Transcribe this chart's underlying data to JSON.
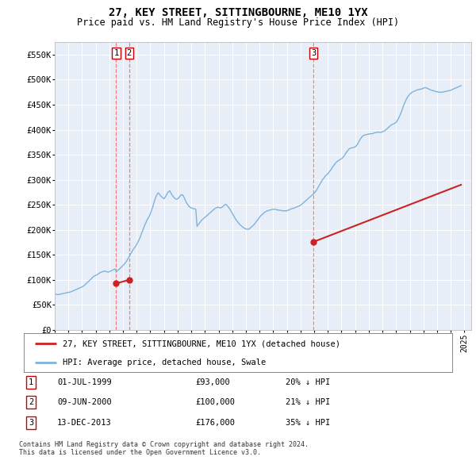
{
  "title": "27, KEY STREET, SITTINGBOURNE, ME10 1YX",
  "subtitle": "Price paid vs. HM Land Registry's House Price Index (HPI)",
  "title_fontsize": 10,
  "subtitle_fontsize": 8.5,
  "ylim": [
    0,
    575000
  ],
  "yticks": [
    0,
    50000,
    100000,
    150000,
    200000,
    250000,
    300000,
    350000,
    400000,
    450000,
    500000,
    550000
  ],
  "ytick_labels": [
    "£0",
    "£50K",
    "£100K",
    "£150K",
    "£200K",
    "£250K",
    "£300K",
    "£350K",
    "£400K",
    "£450K",
    "£500K",
    "£550K"
  ],
  "xlim_start": 1995.0,
  "xlim_end": 2025.5,
  "background_color": "#ffffff",
  "plot_bg_color": "#e8eef8",
  "grid_color": "#ffffff",
  "hpi_line_color": "#7fb3d9",
  "price_line_color": "#cc2222",
  "sale_marker_color": "#cc2222",
  "vline_color": "#ff6666",
  "sales": [
    {
      "date_num": 1999.5,
      "price": 93000,
      "label": "1",
      "date_str": "01-JUL-1999",
      "pct": "20%",
      "dir": "↓"
    },
    {
      "date_num": 2000.45,
      "price": 100000,
      "label": "2",
      "date_str": "09-JUN-2000",
      "pct": "21%",
      "dir": "↓"
    },
    {
      "date_num": 2013.95,
      "price": 176000,
      "label": "3",
      "date_str": "13-DEC-2013",
      "pct": "35%",
      "dir": "↓"
    }
  ],
  "legend_label_red": "27, KEY STREET, SITTINGBOURNE, ME10 1YX (detached house)",
  "legend_label_blue": "HPI: Average price, detached house, Swale",
  "footnote": "Contains HM Land Registry data © Crown copyright and database right 2024.\nThis data is licensed under the Open Government Licence v3.0.",
  "hpi_data": {
    "years": [
      1995.0,
      1995.08,
      1995.17,
      1995.25,
      1995.33,
      1995.42,
      1995.5,
      1995.58,
      1995.67,
      1995.75,
      1995.83,
      1995.92,
      1996.0,
      1996.08,
      1996.17,
      1996.25,
      1996.33,
      1996.42,
      1996.5,
      1996.58,
      1996.67,
      1996.75,
      1996.83,
      1996.92,
      1997.0,
      1997.08,
      1997.17,
      1997.25,
      1997.33,
      1997.42,
      1997.5,
      1997.58,
      1997.67,
      1997.75,
      1997.83,
      1997.92,
      1998.0,
      1998.08,
      1998.17,
      1998.25,
      1998.33,
      1998.42,
      1998.5,
      1998.58,
      1998.67,
      1998.75,
      1998.83,
      1998.92,
      1999.0,
      1999.08,
      1999.17,
      1999.25,
      1999.33,
      1999.42,
      1999.5,
      1999.58,
      1999.67,
      1999.75,
      1999.83,
      1999.92,
      2000.0,
      2000.08,
      2000.17,
      2000.25,
      2000.33,
      2000.42,
      2000.5,
      2000.58,
      2000.67,
      2000.75,
      2000.83,
      2000.92,
      2001.0,
      2001.08,
      2001.17,
      2001.25,
      2001.33,
      2001.42,
      2001.5,
      2001.58,
      2001.67,
      2001.75,
      2001.83,
      2001.92,
      2002.0,
      2002.08,
      2002.17,
      2002.25,
      2002.33,
      2002.42,
      2002.5,
      2002.58,
      2002.67,
      2002.75,
      2002.83,
      2002.92,
      2003.0,
      2003.08,
      2003.17,
      2003.25,
      2003.33,
      2003.42,
      2003.5,
      2003.58,
      2003.67,
      2003.75,
      2003.83,
      2003.92,
      2004.0,
      2004.08,
      2004.17,
      2004.25,
      2004.33,
      2004.42,
      2004.5,
      2004.58,
      2004.67,
      2004.75,
      2004.83,
      2004.92,
      2005.0,
      2005.08,
      2005.17,
      2005.25,
      2005.33,
      2005.42,
      2005.5,
      2005.58,
      2005.67,
      2005.75,
      2005.83,
      2005.92,
      2006.0,
      2006.08,
      2006.17,
      2006.25,
      2006.33,
      2006.42,
      2006.5,
      2006.58,
      2006.67,
      2006.75,
      2006.83,
      2006.92,
      2007.0,
      2007.08,
      2007.17,
      2007.25,
      2007.33,
      2007.42,
      2007.5,
      2007.58,
      2007.67,
      2007.75,
      2007.83,
      2007.92,
      2008.0,
      2008.08,
      2008.17,
      2008.25,
      2008.33,
      2008.42,
      2008.5,
      2008.58,
      2008.67,
      2008.75,
      2008.83,
      2008.92,
      2009.0,
      2009.08,
      2009.17,
      2009.25,
      2009.33,
      2009.42,
      2009.5,
      2009.58,
      2009.67,
      2009.75,
      2009.83,
      2009.92,
      2010.0,
      2010.08,
      2010.17,
      2010.25,
      2010.33,
      2010.42,
      2010.5,
      2010.58,
      2010.67,
      2010.75,
      2010.83,
      2010.92,
      2011.0,
      2011.08,
      2011.17,
      2011.25,
      2011.33,
      2011.42,
      2011.5,
      2011.58,
      2011.67,
      2011.75,
      2011.83,
      2011.92,
      2012.0,
      2012.08,
      2012.17,
      2012.25,
      2012.33,
      2012.42,
      2012.5,
      2012.58,
      2012.67,
      2012.75,
      2012.83,
      2012.92,
      2013.0,
      2013.08,
      2013.17,
      2013.25,
      2013.33,
      2013.42,
      2013.5,
      2013.58,
      2013.67,
      2013.75,
      2013.83,
      2013.92,
      2014.0,
      2014.08,
      2014.17,
      2014.25,
      2014.33,
      2014.42,
      2014.5,
      2014.58,
      2014.67,
      2014.75,
      2014.83,
      2014.92,
      2015.0,
      2015.08,
      2015.17,
      2015.25,
      2015.33,
      2015.42,
      2015.5,
      2015.58,
      2015.67,
      2015.75,
      2015.83,
      2015.92,
      2016.0,
      2016.08,
      2016.17,
      2016.25,
      2016.33,
      2016.42,
      2016.5,
      2016.58,
      2016.67,
      2016.75,
      2016.83,
      2016.92,
      2017.0,
      2017.08,
      2017.17,
      2017.25,
      2017.33,
      2017.42,
      2017.5,
      2017.58,
      2017.67,
      2017.75,
      2017.83,
      2017.92,
      2018.0,
      2018.08,
      2018.17,
      2018.25,
      2018.33,
      2018.42,
      2018.5,
      2018.58,
      2018.67,
      2018.75,
      2018.83,
      2018.92,
      2019.0,
      2019.08,
      2019.17,
      2019.25,
      2019.33,
      2019.42,
      2019.5,
      2019.58,
      2019.67,
      2019.75,
      2019.83,
      2019.92,
      2020.0,
      2020.08,
      2020.17,
      2020.25,
      2020.33,
      2020.42,
      2020.5,
      2020.58,
      2020.67,
      2020.75,
      2020.83,
      2020.92,
      2021.0,
      2021.08,
      2021.17,
      2021.25,
      2021.33,
      2021.42,
      2021.5,
      2021.58,
      2021.67,
      2021.75,
      2021.83,
      2021.92,
      2022.0,
      2022.08,
      2022.17,
      2022.25,
      2022.33,
      2022.42,
      2022.5,
      2022.58,
      2022.67,
      2022.75,
      2022.83,
      2022.92,
      2023.0,
      2023.08,
      2023.17,
      2023.25,
      2023.33,
      2023.42,
      2023.5,
      2023.58,
      2023.67,
      2023.75,
      2023.83,
      2023.92,
      2024.0,
      2024.08,
      2024.17,
      2024.25,
      2024.33,
      2024.42,
      2024.5,
      2024.58,
      2024.67,
      2024.75
    ],
    "values": [
      72000,
      71500,
      71000,
      70500,
      71000,
      71500,
      72000,
      72500,
      73000,
      73500,
      74000,
      74500,
      75000,
      75500,
      76000,
      77000,
      78000,
      79000,
      80000,
      81000,
      82000,
      83000,
      84000,
      85000,
      86000,
      87500,
      89000,
      91000,
      93500,
      95500,
      97500,
      100000,
      102000,
      104500,
      106500,
      108000,
      109000,
      110000,
      111500,
      113000,
      114500,
      115500,
      116500,
      117000,
      117500,
      117000,
      116000,
      115500,
      116500,
      117500,
      118500,
      119500,
      121000,
      122000,
      116000,
      118000,
      120000,
      122000,
      124500,
      126500,
      129000,
      131000,
      134000,
      137000,
      141000,
      145000,
      149000,
      153000,
      157000,
      161000,
      164000,
      167000,
      171000,
      175000,
      180000,
      185000,
      191000,
      197000,
      203000,
      209000,
      214000,
      219000,
      223000,
      227000,
      232000,
      238000,
      245000,
      253000,
      260000,
      267000,
      271000,
      274000,
      271000,
      268000,
      266000,
      264000,
      262000,
      265000,
      269000,
      273000,
      276000,
      278000,
      274000,
      270000,
      267000,
      264000,
      262000,
      261000,
      262000,
      264000,
      267000,
      270000,
      270000,
      268000,
      263000,
      258000,
      253000,
      250000,
      247000,
      245000,
      244000,
      243000,
      242000,
      242000,
      241000,
      207000,
      210000,
      213000,
      216000,
      219000,
      221000,
      223000,
      225000,
      227000,
      229000,
      231000,
      233000,
      235000,
      237000,
      239000,
      241000,
      243000,
      244000,
      245000,
      245000,
      244000,
      244000,
      245000,
      247000,
      249000,
      251000,
      250000,
      247000,
      244000,
      241000,
      237000,
      233000,
      229000,
      225000,
      221000,
      218000,
      215000,
      212000,
      210000,
      208000,
      206000,
      204000,
      203000,
      202000,
      201000,
      201000,
      202000,
      204000,
      206000,
      208000,
      210000,
      213000,
      216000,
      219000,
      222000,
      225000,
      228000,
      230000,
      232000,
      234000,
      236000,
      237000,
      238000,
      239000,
      239000,
      240000,
      241000,
      241000,
      241000,
      241000,
      240000,
      240000,
      239000,
      239000,
      239000,
      238000,
      238000,
      238000,
      238000,
      238000,
      239000,
      240000,
      241000,
      242000,
      243000,
      243000,
      244000,
      245000,
      246000,
      247000,
      248000,
      249000,
      251000,
      253000,
      255000,
      257000,
      259000,
      261000,
      263000,
      265000,
      267000,
      269000,
      271000,
      273000,
      276000,
      279000,
      283000,
      287000,
      291000,
      295000,
      299000,
      302000,
      305000,
      308000,
      310000,
      312000,
      315000,
      318000,
      321000,
      325000,
      328000,
      331000,
      334000,
      336000,
      338000,
      339000,
      341000,
      342000,
      344000,
      347000,
      350000,
      354000,
      357000,
      360000,
      362000,
      363000,
      364000,
      364000,
      365000,
      366000,
      368000,
      371000,
      375000,
      379000,
      383000,
      386000,
      388000,
      389000,
      390000,
      390000,
      391000,
      391000,
      392000,
      392000,
      392000,
      393000,
      394000,
      394000,
      395000,
      395000,
      395000,
      395000,
      395000,
      396000,
      397000,
      398000,
      400000,
      402000,
      404000,
      406000,
      408000,
      410000,
      411000,
      412000,
      413000,
      415000,
      418000,
      422000,
      427000,
      432000,
      438000,
      445000,
      451000,
      456000,
      461000,
      465000,
      468000,
      471000,
      473000,
      475000,
      476000,
      477000,
      478000,
      479000,
      480000,
      480000,
      481000,
      481000,
      482000,
      483000,
      484000,
      484000,
      483000,
      482000,
      481000,
      480000,
      479000,
      478000,
      478000,
      477000,
      476000,
      476000,
      475000,
      475000,
      475000,
      475000,
      475000,
      476000,
      476000,
      477000,
      477000,
      478000,
      478000,
      479000,
      480000,
      481000,
      482000,
      483000,
      484000,
      485000,
      486000,
      487000,
      488000
    ]
  },
  "price_segments": [
    {
      "x": [
        1999.5,
        2000.45
      ],
      "y": [
        93000,
        100000
      ]
    },
    {
      "x": [
        2013.95,
        2024.75
      ],
      "y": [
        176000,
        290000
      ]
    }
  ]
}
